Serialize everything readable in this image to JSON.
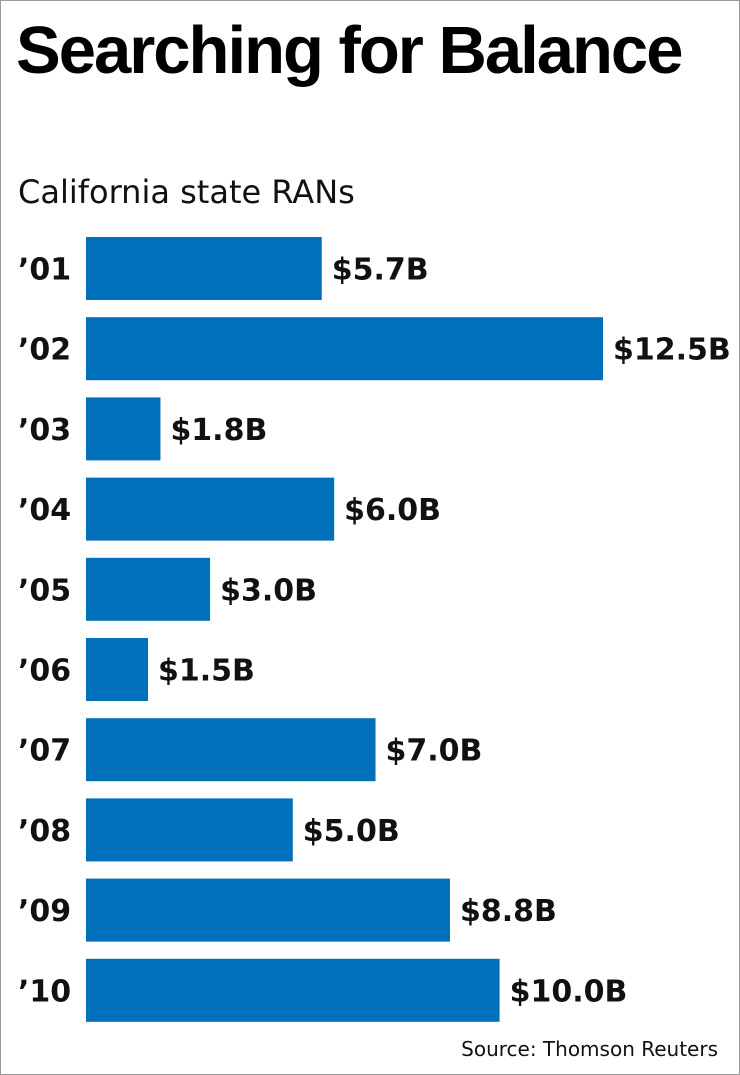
{
  "chart_data": {
    "type": "bar",
    "orientation": "horizontal",
    "title": "Searching for Balance",
    "subtitle": "California state RANs",
    "categories": [
      "’01",
      "’02",
      "’03",
      "’04",
      "’05",
      "’06",
      "’07",
      "’08",
      "’09",
      "’10"
    ],
    "values": [
      5.7,
      12.5,
      1.8,
      6.0,
      3.0,
      1.5,
      7.0,
      5.0,
      8.8,
      10.0
    ],
    "value_labels": [
      "$5.7B",
      "$12.5B",
      "$1.8B",
      "$6.0B",
      "$3.0B",
      "$1.5B",
      "$7.0B",
      "$5.0B",
      "$8.8B",
      "$10.0B"
    ],
    "unit": "$ billions",
    "xlim": [
      0,
      12.5
    ],
    "source": "Source: Thomson Reuters",
    "bar_color": "#0070BA",
    "xlabel": "",
    "ylabel": "",
    "grid": false
  }
}
